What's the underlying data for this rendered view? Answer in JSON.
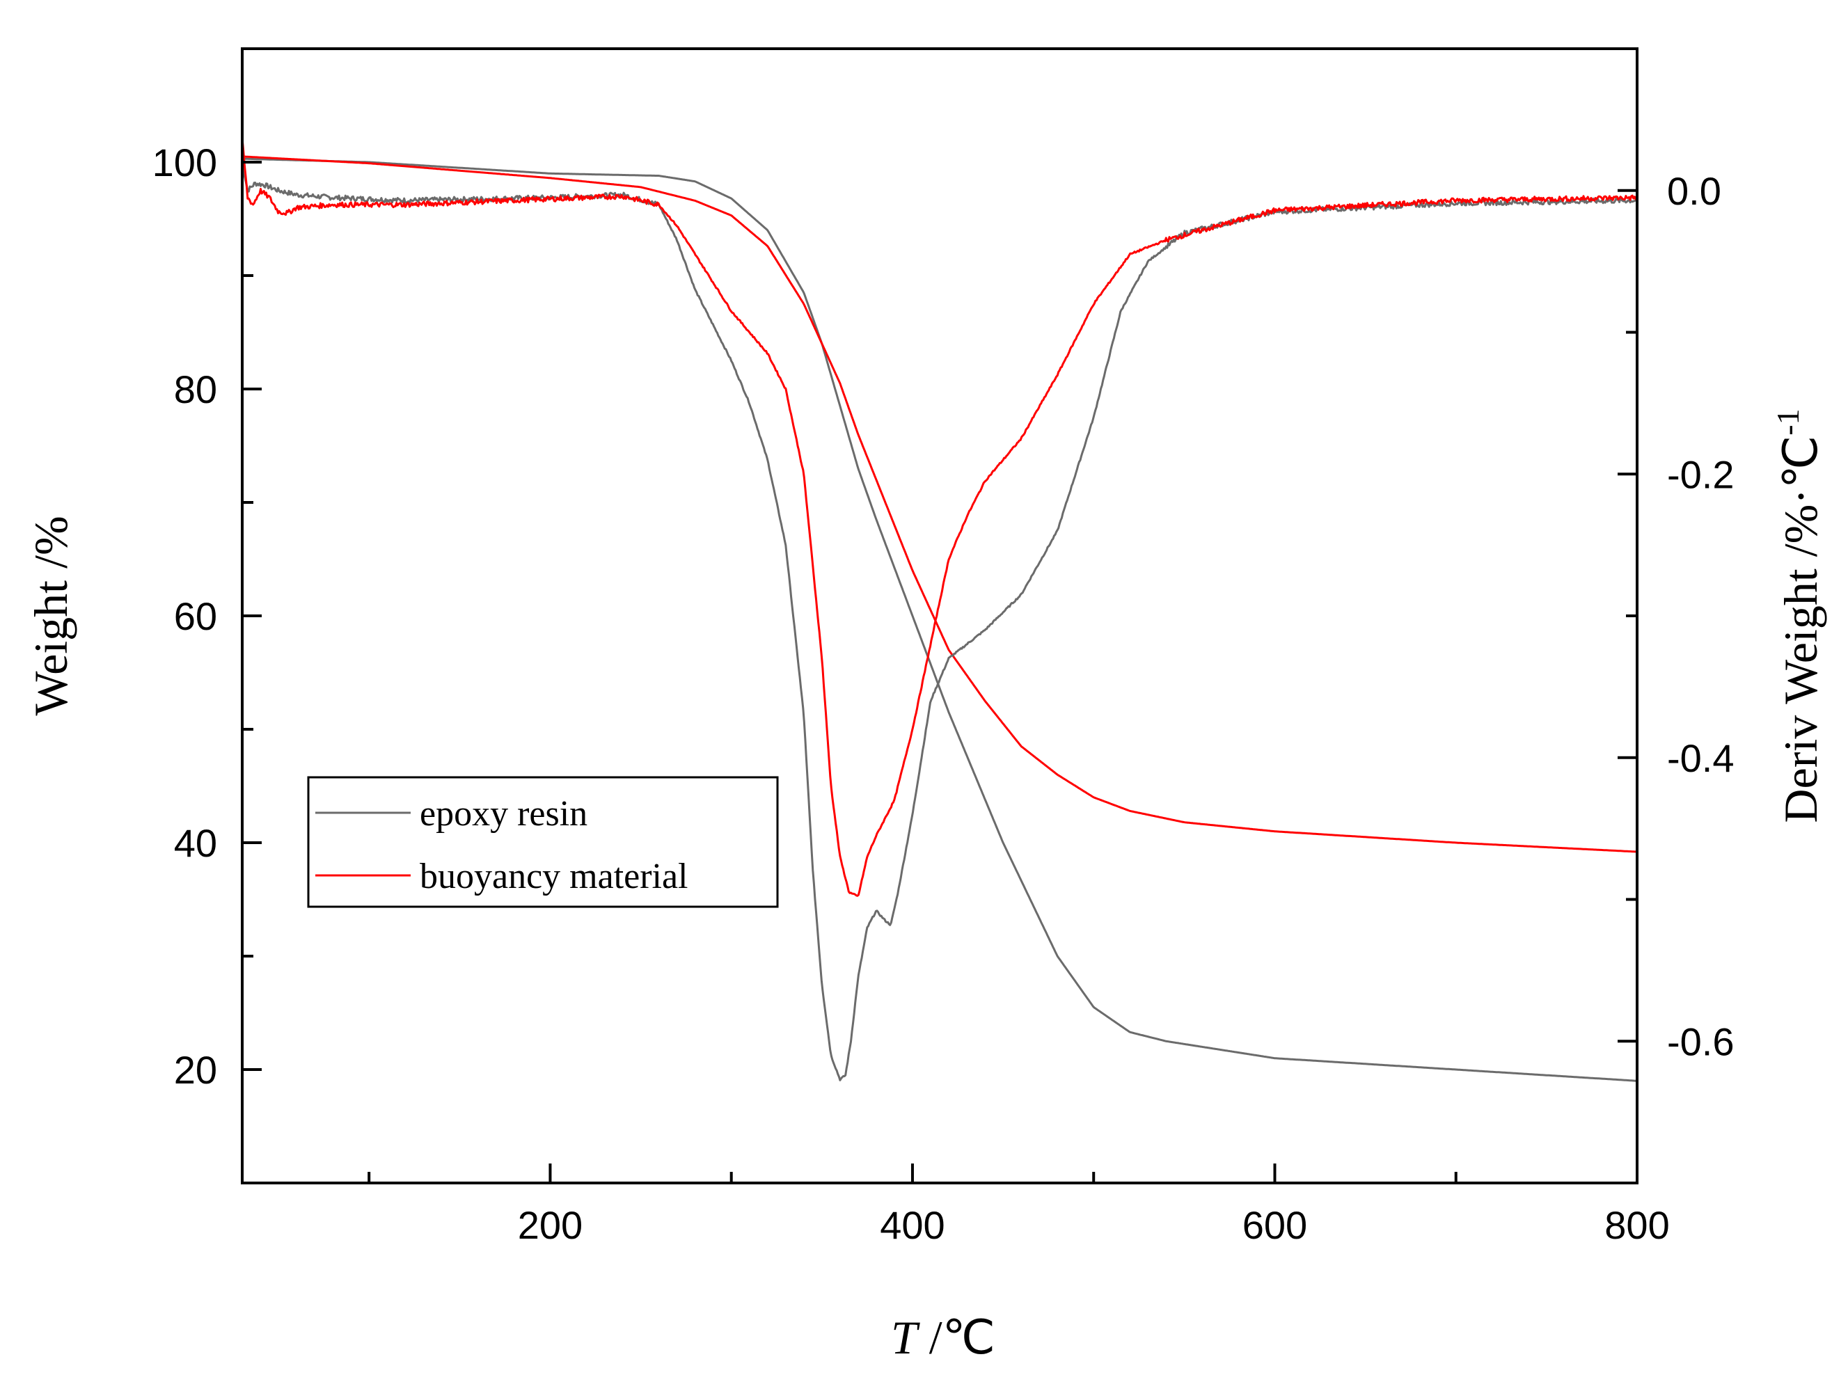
{
  "chart_data": {
    "type": "line",
    "title": "",
    "xlabel_italic": "T",
    "xlabel_rest": " /℃",
    "ylabel_left": "Weight /%",
    "ylabel_right_main": "Deriv Weight /%·℃",
    "ylabel_right_sup": "-1",
    "xlim": [
      30,
      800
    ],
    "ylim_left": [
      10,
      110
    ],
    "ylim_right": [
      -0.7,
      0.1
    ],
    "x_ticks": [
      200,
      400,
      600,
      800
    ],
    "x_tick_labels": [
      "200",
      "400",
      "600",
      "800"
    ],
    "left_ticks": [
      20,
      40,
      60,
      80,
      100
    ],
    "left_tick_labels": [
      "20",
      "40",
      "60",
      "80",
      "100"
    ],
    "right_ticks": [
      0.0,
      -0.2,
      -0.4,
      -0.6
    ],
    "right_tick_labels": [
      "0.0",
      "-0.2",
      "-0.4",
      "-0.6"
    ],
    "legend_position": "lower-left",
    "legend": [
      "epoxy resin",
      "buoyancy material"
    ],
    "colors": {
      "epoxy": "#6b6b6b",
      "buoyancy": "#ff0000",
      "axis": "#000000"
    },
    "series": [
      {
        "name": "epoxy resin",
        "kind": "weight",
        "axis": "left",
        "color": "#6b6b6b",
        "x": [
          30,
          100,
          200,
          260,
          280,
          300,
          320,
          340,
          350,
          360,
          370,
          380,
          400,
          420,
          450,
          480,
          500,
          520,
          540,
          560,
          600,
          700,
          800
        ],
        "y": [
          100.3,
          100.0,
          99.0,
          98.8,
          98.3,
          96.8,
          94.0,
          88.5,
          84.0,
          78.5,
          73.0,
          68.5,
          60.0,
          51.5,
          40.0,
          30.0,
          25.5,
          23.3,
          22.5,
          22.0,
          21.0,
          20.0,
          19.0
        ]
      },
      {
        "name": "buoyancy material",
        "kind": "weight",
        "axis": "left",
        "color": "#ff0000",
        "x": [
          30,
          100,
          200,
          250,
          280,
          300,
          320,
          340,
          360,
          370,
          380,
          400,
          420,
          440,
          460,
          480,
          500,
          520,
          550,
          600,
          700,
          800
        ],
        "y": [
          100.5,
          99.9,
          98.6,
          97.8,
          96.6,
          95.3,
          92.6,
          87.5,
          80.5,
          76.0,
          72.0,
          64.0,
          57.0,
          52.5,
          48.5,
          46.0,
          44.0,
          42.8,
          41.8,
          41.0,
          40.0,
          39.2
        ]
      },
      {
        "name": "epoxy resin",
        "kind": "derivative",
        "axis": "right",
        "color": "#6b6b6b",
        "x": [
          30,
          33,
          37,
          42,
          50,
          60,
          80,
          120,
          200,
          240,
          260,
          270,
          280,
          290,
          300,
          310,
          320,
          330,
          340,
          345,
          350,
          355,
          360,
          363,
          366,
          370,
          375,
          380,
          385,
          388,
          392,
          400,
          410,
          420,
          440,
          460,
          480,
          500,
          515,
          530,
          550,
          600,
          700,
          800
        ],
        "y": [
          0.02,
          0.0,
          0.005,
          0.004,
          0.0,
          -0.003,
          -0.005,
          -0.007,
          -0.005,
          -0.003,
          -0.01,
          -0.035,
          -0.07,
          -0.095,
          -0.12,
          -0.15,
          -0.19,
          -0.25,
          -0.37,
          -0.48,
          -0.56,
          -0.61,
          -0.627,
          -0.624,
          -0.6,
          -0.555,
          -0.52,
          -0.508,
          -0.515,
          -0.518,
          -0.495,
          -0.44,
          -0.36,
          -0.33,
          -0.31,
          -0.285,
          -0.24,
          -0.16,
          -0.085,
          -0.05,
          -0.03,
          -0.015,
          -0.009,
          -0.007
        ]
      },
      {
        "name": "buoyancy material",
        "kind": "derivative",
        "axis": "right",
        "color": "#ff0000",
        "x": [
          30,
          33,
          36,
          40,
          45,
          50,
          55,
          60,
          80,
          120,
          200,
          240,
          260,
          270,
          280,
          290,
          300,
          310,
          320,
          330,
          340,
          350,
          355,
          360,
          365,
          370,
          375,
          380,
          390,
          400,
          410,
          420,
          430,
          440,
          460,
          480,
          500,
          520,
          540,
          600,
          700,
          800
        ],
        "y": [
          0.035,
          -0.005,
          -0.01,
          0.0,
          -0.005,
          -0.015,
          -0.016,
          -0.012,
          -0.01,
          -0.01,
          -0.006,
          -0.004,
          -0.01,
          -0.025,
          -0.045,
          -0.065,
          -0.085,
          -0.1,
          -0.115,
          -0.14,
          -0.2,
          -0.33,
          -0.42,
          -0.47,
          -0.495,
          -0.498,
          -0.47,
          -0.455,
          -0.43,
          -0.38,
          -0.32,
          -0.26,
          -0.23,
          -0.205,
          -0.175,
          -0.13,
          -0.08,
          -0.045,
          -0.035,
          -0.014,
          -0.007,
          -0.005
        ]
      }
    ]
  }
}
